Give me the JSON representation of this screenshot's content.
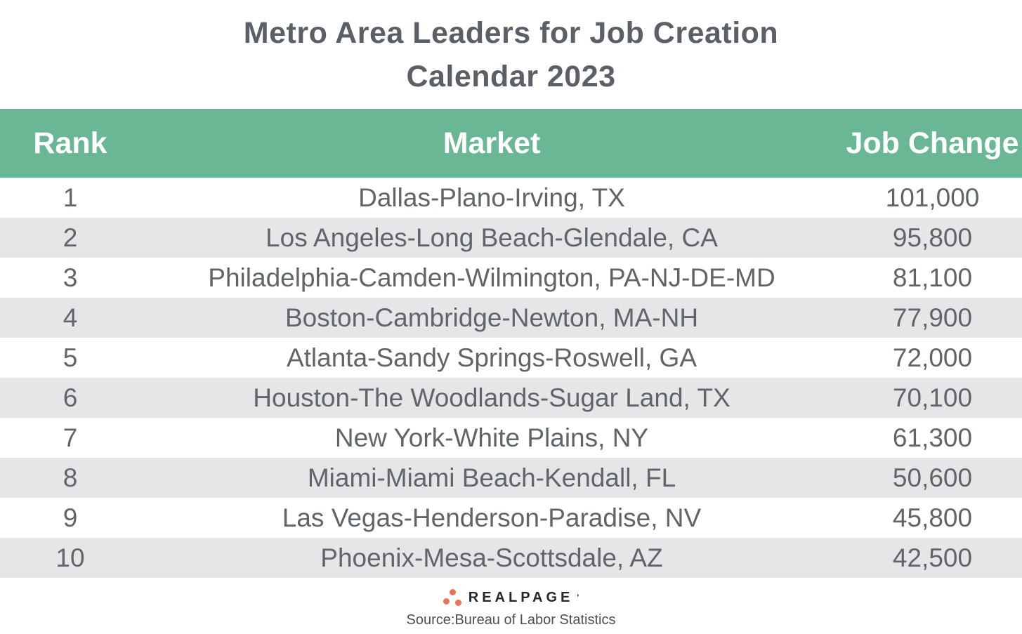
{
  "title": {
    "line1": "Metro Area Leaders for Job Creation",
    "line2": "Calendar 2023"
  },
  "table": {
    "columns": [
      "Rank",
      "Market",
      "Job Change"
    ],
    "rows": [
      {
        "rank": "1",
        "market": "Dallas-Plano-Irving, TX",
        "job_change": "101,000"
      },
      {
        "rank": "2",
        "market": "Los Angeles-Long Beach-Glendale, CA",
        "job_change": "95,800"
      },
      {
        "rank": "3",
        "market": "Philadelphia-Camden-Wilmington, PA-NJ-DE-MD",
        "job_change": "81,100"
      },
      {
        "rank": "4",
        "market": "Boston-Cambridge-Newton, MA-NH",
        "job_change": "77,900"
      },
      {
        "rank": "5",
        "market": "Atlanta-Sandy Springs-Roswell, GA",
        "job_change": "72,000"
      },
      {
        "rank": "6",
        "market": "Houston-The Woodlands-Sugar Land, TX",
        "job_change": "70,100"
      },
      {
        "rank": "7",
        "market": "New York-White Plains, NY",
        "job_change": "61,300"
      },
      {
        "rank": "8",
        "market": "Miami-Miami Beach-Kendall, FL",
        "job_change": "50,600"
      },
      {
        "rank": "9",
        "market": "Las Vegas-Henderson-Paradise, NV",
        "job_change": "45,800"
      },
      {
        "rank": "10",
        "market": "Phoenix-Mesa-Scottsdale, AZ",
        "job_change": "42,500"
      }
    ]
  },
  "footer": {
    "brand": "REALPAGE",
    "trademark_mark": "'",
    "source": "Source:Bureau of Labor Statistics"
  },
  "colors": {
    "header_bg": "#6ab795",
    "header_text": "#ffffff",
    "row_alt_bg": "#e6e6e8",
    "title_text": "#5a6065",
    "body_text": "#5f6569",
    "brand_dot": "#e8745a",
    "brand_text": "#24282b",
    "source_text": "#4a5054"
  },
  "chart_data": {
    "type": "table",
    "title": "Metro Area Leaders for Job Creation Calendar 2023",
    "columns": [
      "Rank",
      "Market",
      "Job Change"
    ],
    "rows": [
      [
        1,
        "Dallas-Plano-Irving, TX",
        101000
      ],
      [
        2,
        "Los Angeles-Long Beach-Glendale, CA",
        95800
      ],
      [
        3,
        "Philadelphia-Camden-Wilmington, PA-NJ-DE-MD",
        81100
      ],
      [
        4,
        "Boston-Cambridge-Newton, MA-NH",
        77900
      ],
      [
        5,
        "Atlanta-Sandy Springs-Roswell, GA",
        72000
      ],
      [
        6,
        "Houston-The Woodlands-Sugar Land, TX",
        70100
      ],
      [
        7,
        "New York-White Plains, NY",
        61300
      ],
      [
        8,
        "Miami-Miami Beach-Kendall, FL",
        50600
      ],
      [
        9,
        "Las Vegas-Henderson-Paradise, NV",
        45800
      ],
      [
        10,
        "Phoenix-Mesa-Scottsdale, AZ",
        42500
      ]
    ],
    "source": "Bureau of Labor Statistics"
  }
}
